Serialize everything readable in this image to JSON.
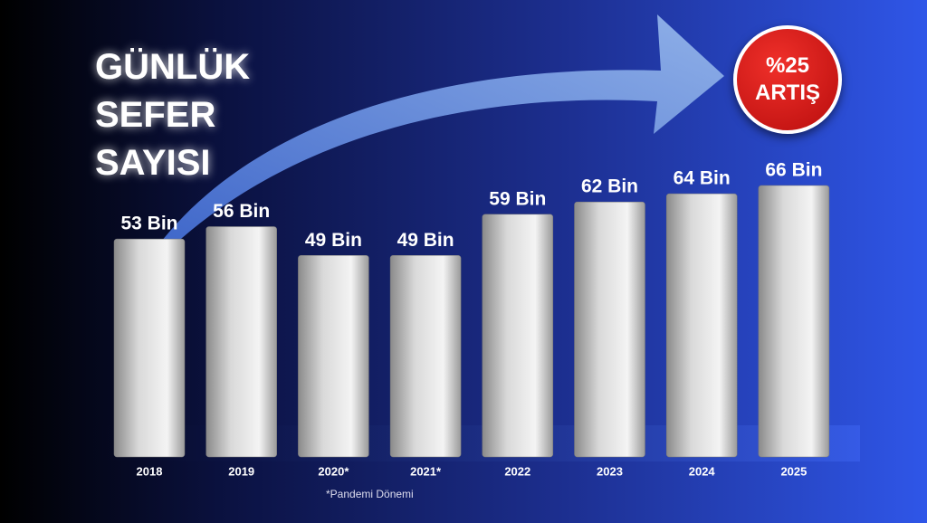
{
  "chart_data": {
    "type": "bar",
    "title": "GÜNLÜK SEFER SAYISI",
    "annotation": "%25 ARTIŞ",
    "note": "*Pandemi Dönemi",
    "categories": [
      "2018",
      "2019",
      "2020*",
      "2021*",
      "2022",
      "2023",
      "2024",
      "2025"
    ],
    "values": [
      53,
      56,
      49,
      49,
      59,
      62,
      64,
      66
    ],
    "value_labels": [
      "53 Bin",
      "56 Bin",
      "49 Bin",
      "49 Bin",
      "59 Bin",
      "62 Bin",
      "64 Bin",
      "66 Bin"
    ],
    "color": "#d9d9d9"
  }
}
